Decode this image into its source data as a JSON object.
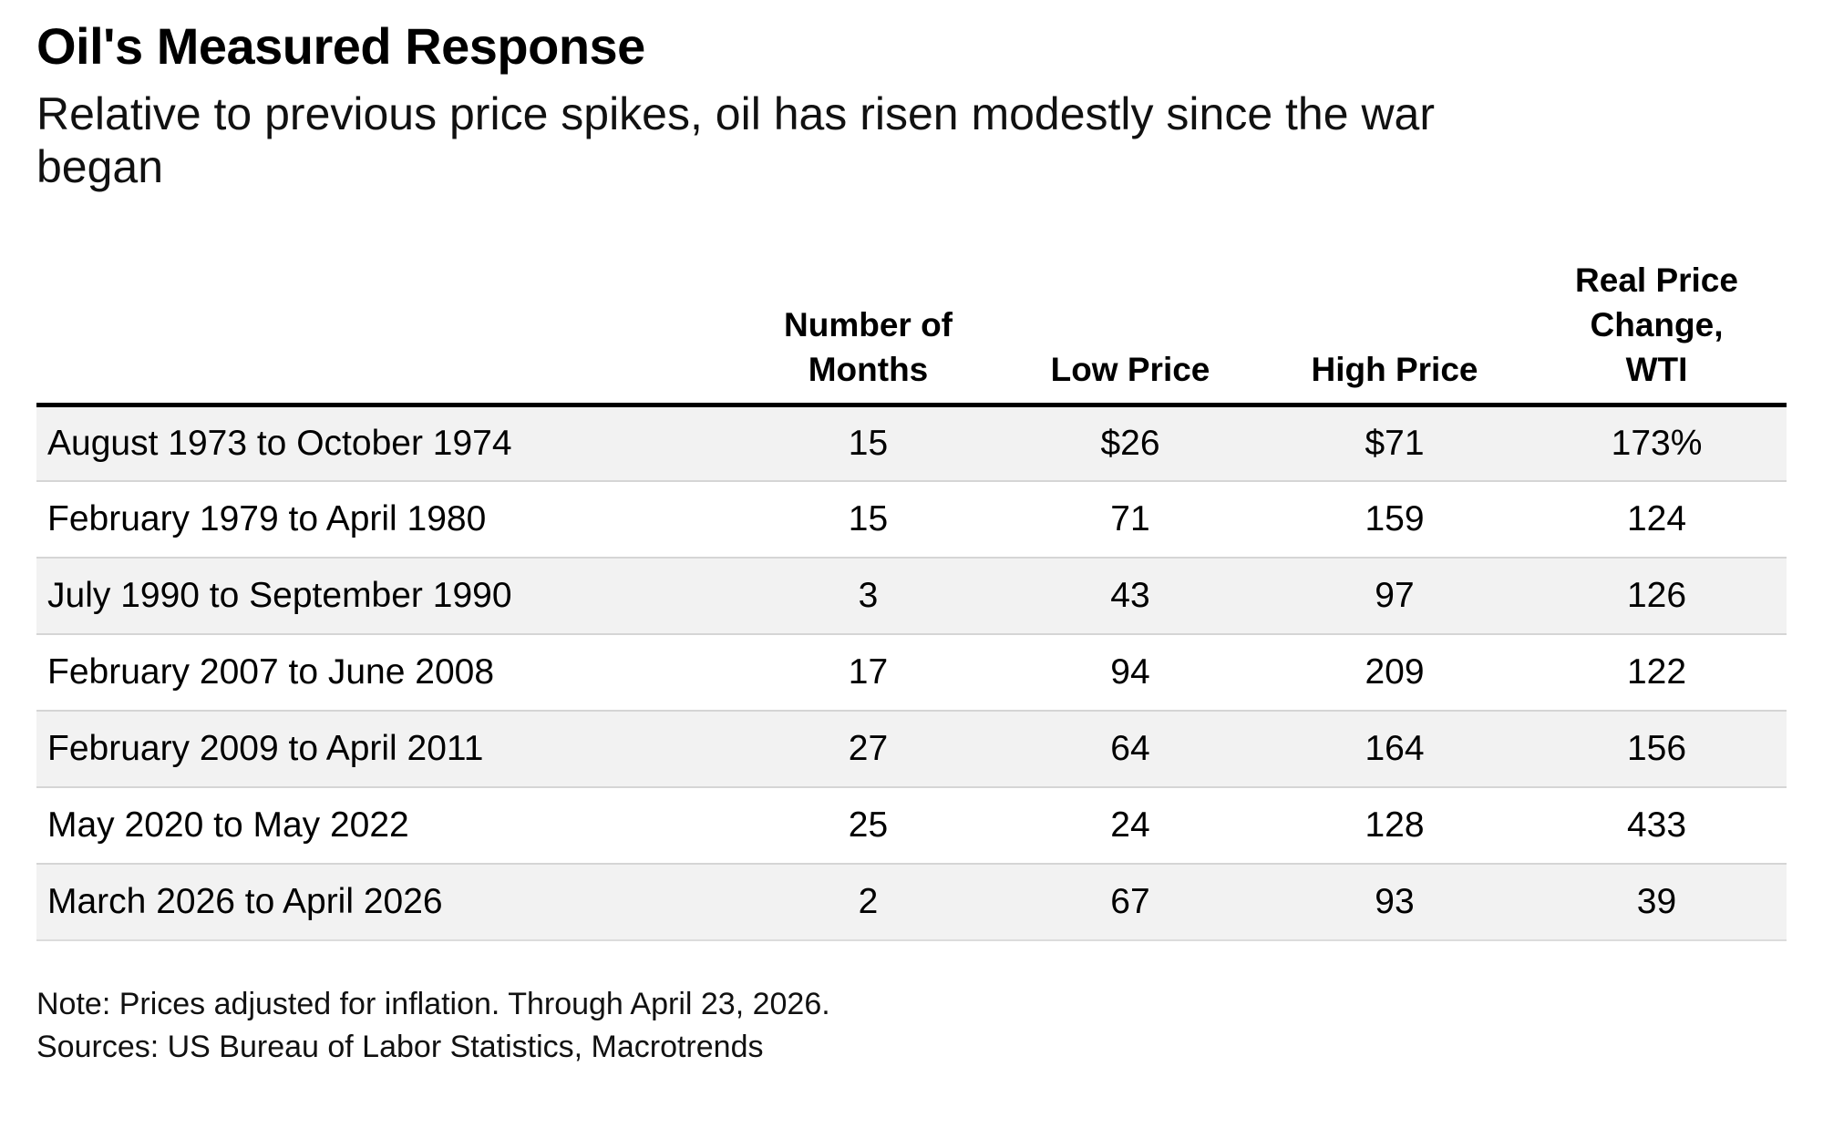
{
  "header": {
    "title": "Oil's Measured Response",
    "subtitle": "Relative to previous price spikes, oil has risen modestly since the war\nbegan"
  },
  "table": {
    "col_headers": [
      "",
      "Number of\nMonths",
      "Low Price",
      "High Price",
      "Real Price\nChange,\nWTI"
    ],
    "rows": [
      {
        "period": "August 1973 to October 1974",
        "months": "15",
        "low": "$26",
        "high": "$71",
        "change": "173%"
      },
      {
        "period": "February 1979 to April 1980",
        "months": "15",
        "low": "71",
        "high": "159",
        "change": "124"
      },
      {
        "period": "July 1990 to September 1990",
        "months": "3",
        "low": "43",
        "high": "97",
        "change": "126"
      },
      {
        "period": "February 2007 to June 2008",
        "months": "17",
        "low": "94",
        "high": "209",
        "change": "122"
      },
      {
        "period": "February 2009 to April 2011",
        "months": "27",
        "low": "64",
        "high": "164",
        "change": "156"
      },
      {
        "period": "May 2020 to May 2022",
        "months": "25",
        "low": "24",
        "high": "128",
        "change": "433"
      },
      {
        "period": "March 2026 to April 2026",
        "months": "2",
        "low": "67",
        "high": "93",
        "change": "39"
      }
    ]
  },
  "footer": {
    "note": "Note: Prices adjusted for inflation. Through April 23, 2026.",
    "sources": "Sources: US Bureau of Labor Statistics, Macrotrends"
  },
  "colors": {
    "text": "#000000",
    "row_stripe": "#f2f2f2",
    "row_divider": "#d5d5d5",
    "header_rule": "#000000",
    "background": "#ffffff"
  },
  "chart_data": {
    "type": "table",
    "title": "Oil's Measured Response",
    "subtitle": "Relative to previous price spikes, oil has risen modestly since the war began",
    "columns": [
      "",
      "Number of Months",
      "Low Price",
      "High Price",
      "Real Price Change, WTI"
    ],
    "rows": [
      [
        "August 1973 to October 1974",
        15,
        26,
        71,
        173
      ],
      [
        "February 1979 to April 1980",
        15,
        71,
        159,
        124
      ],
      [
        "July 1990 to September 1990",
        3,
        43,
        97,
        126
      ],
      [
        "February 2007 to June 2008",
        17,
        94,
        209,
        122
      ],
      [
        "February 2009 to April 2011",
        27,
        64,
        164,
        156
      ],
      [
        "May 2020 to May 2022",
        25,
        24,
        128,
        433
      ],
      [
        "March 2026 to April 2026",
        2,
        67,
        93,
        39
      ]
    ],
    "value_units": {
      "low_price": "USD per barrel",
      "high_price": "USD per barrel",
      "real_price_change_wti": "percent"
    },
    "layout_hints": {
      "striped_rows": true,
      "header_rule": "thick-black",
      "first_column_align": "left",
      "value_columns_align": "center"
    },
    "note": "Note: Prices adjusted for inflation. Through April 23, 2026.",
    "sources": "Sources: US Bureau of Labor Statistics, Macrotrends"
  }
}
